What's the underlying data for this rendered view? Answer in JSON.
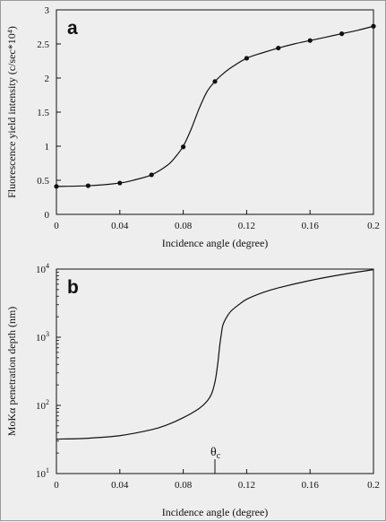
{
  "chart_data": [
    {
      "type": "line",
      "panel_label": "a",
      "xlabel": "Incidence angle (degree)",
      "ylabel": "Fluorescence yield intensity (c/sec*10⁴)",
      "xlim": [
        0,
        0.2
      ],
      "ylim": [
        0,
        3
      ],
      "x_ticks": [
        0,
        0.04,
        0.08,
        0.12,
        0.16,
        0.2
      ],
      "x_tick_labels": [
        "0",
        "0.04",
        "0.08",
        "0.12",
        "0.16",
        "0.2"
      ],
      "y_ticks": [
        0,
        0.5,
        1,
        1.5,
        2,
        2.5,
        3
      ],
      "y_tick_labels": [
        "0",
        "0.5",
        "1",
        "1.5",
        "2",
        "2.5",
        "3"
      ],
      "grid": false,
      "series": [
        {
          "markers": true,
          "x": [
            0,
            0.02,
            0.04,
            0.06,
            0.08,
            0.1,
            0.12,
            0.14,
            0.16,
            0.18,
            0.2
          ],
          "y": [
            0.41,
            0.42,
            0.46,
            0.58,
            0.99,
            1.95,
            2.29,
            2.44,
            2.55,
            2.65,
            2.76
          ]
        }
      ],
      "curve": {
        "x": [
          0,
          0.02,
          0.04,
          0.05,
          0.06,
          0.07,
          0.075,
          0.08,
          0.085,
          0.09,
          0.095,
          0.1,
          0.105,
          0.11,
          0.12,
          0.13,
          0.14,
          0.15,
          0.16,
          0.17,
          0.18,
          0.19,
          0.2
        ],
        "y": [
          0.41,
          0.42,
          0.46,
          0.51,
          0.58,
          0.72,
          0.84,
          1.0,
          1.25,
          1.55,
          1.8,
          1.95,
          2.06,
          2.15,
          2.29,
          2.37,
          2.44,
          2.5,
          2.55,
          2.6,
          2.65,
          2.7,
          2.76
        ]
      }
    },
    {
      "type": "line",
      "panel_label": "b",
      "xlabel": "Incidence angle (degree)",
      "ylabel": "MoKα penetration depth (nm)",
      "xlim": [
        0,
        0.2
      ],
      "ylim": [
        10,
        10000
      ],
      "y_scale": "log",
      "x_ticks": [
        0,
        0.04,
        0.08,
        0.12,
        0.16,
        0.2
      ],
      "x_tick_labels": [
        "0",
        "0.04",
        "0.08",
        "0.12",
        "0.16",
        "0.2"
      ],
      "y_ticks": [
        10,
        100,
        1000,
        10000
      ],
      "y_tick_labels": [
        {
          "base": "10",
          "exp": "1"
        },
        {
          "base": "10",
          "exp": "2"
        },
        {
          "base": "10",
          "exp": "3"
        },
        {
          "base": "10",
          "exp": "4"
        }
      ],
      "grid": false,
      "series": [
        {
          "markers": false,
          "x": [
            0,
            0.02,
            0.04,
            0.06,
            0.07,
            0.08,
            0.09,
            0.095,
            0.098,
            0.1,
            0.101,
            0.102,
            0.103,
            0.104,
            0.105,
            0.107,
            0.11,
            0.115,
            0.12,
            0.13,
            0.14,
            0.16,
            0.18,
            0.2
          ],
          "y": [
            32,
            33,
            36,
            44,
            52,
            66,
            90,
            115,
            150,
            220,
            300,
            450,
            750,
            1100,
            1500,
            1900,
            2400,
            3000,
            3600,
            4500,
            5300,
            6800,
            8300,
            9800
          ]
        }
      ],
      "annotation": {
        "text": "θ",
        "subscript": "c",
        "x": 0.1
      }
    }
  ]
}
